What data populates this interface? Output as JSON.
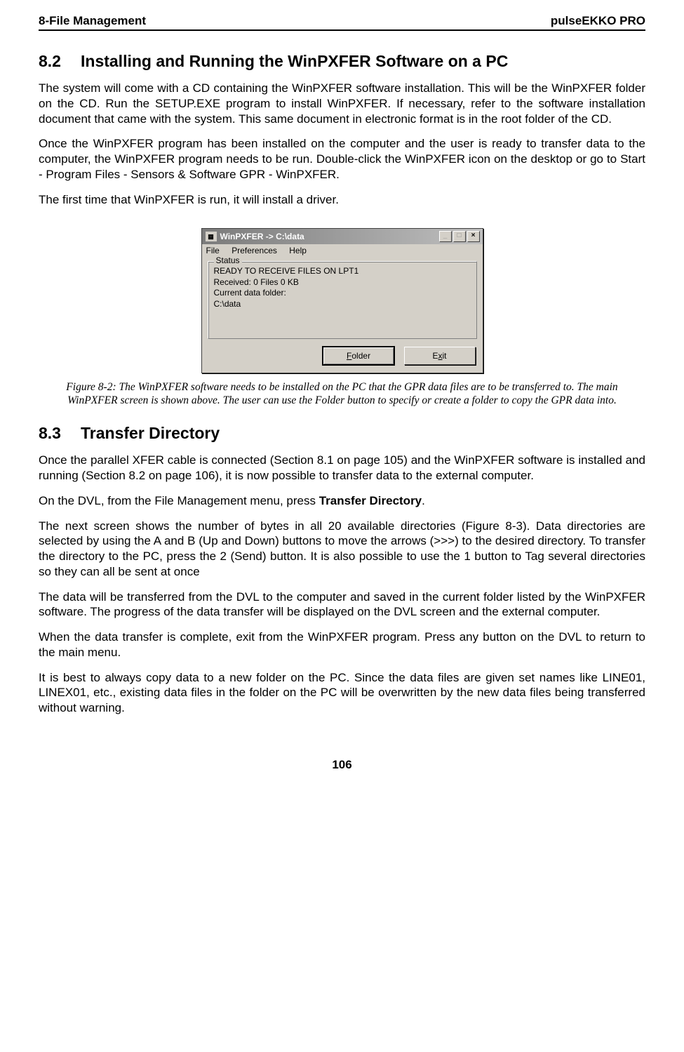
{
  "header": {
    "left": "8-File Management",
    "right": "pulseEKKO PRO"
  },
  "section82": {
    "num": "8.2",
    "title": "Installing and Running the WinPXFER Software on a PC",
    "p1": "The system will come with a CD containing the WinPXFER software installation. This will be the WinPXFER folder on the CD. Run the SETUP.EXE program to install WinPXFER. If necessary, refer to the software installation document that came with the system. This same document in electronic format is in the root folder of the CD.",
    "p2": "Once the WinPXFER program has been installed on the computer and the user is ready to transfer data to the computer, the WinPXFER program needs to be run. Double-click the WinPXFER icon on the desktop or go to Start - Program Files - Sensors & Software GPR - WinPXFER.",
    "p3": "The first time that WinPXFER is run, it will install a driver."
  },
  "window": {
    "title": "WinPXFER -> C:\\data",
    "menu": {
      "file": "File",
      "preferences": "Preferences",
      "help": "Help"
    },
    "group_label": "Status",
    "lines": {
      "l1": "READY TO RECEIVE FILES ON LPT1",
      "l2": "Received:   0 Files   0 KB",
      "l3": "Current data folder:",
      "l4": "C:\\data"
    },
    "buttons": {
      "folder": "Folder",
      "exit": "Exit"
    },
    "close_glyph": "×",
    "max_glyph": "□",
    "min_glyph": "_",
    "controls": {
      "min": "_",
      "max": "□",
      "close": "×"
    }
  },
  "caption": "Figure 8-2:  The WinPXFER software needs to be installed on the PC that the GPR data files are to be transferred to. The main WinPXFER screen is shown above. The user can use the Folder button to specify or create a folder to copy the GPR data into.",
  "section83": {
    "num": "8.3",
    "title": "Transfer Directory",
    "p1": "Once the parallel XFER cable is connected (Section 8.1 on page 105) and the WinPXFER software is installed and running (Section 8.2 on page 106), it is now possible to transfer data to the external computer.",
    "p2a": "On the DVL, from the File Management menu, press ",
    "p2bold": "Transfer Directory",
    "p2b": ".",
    "p3": "The next screen shows the number of bytes in all 20 available directories (Figure 8-3). Data directories are selected by using the A and B (Up and Down) buttons to move the arrows (>>>) to the desired directory. To transfer the directory to the PC, press the 2 (Send) button. It is also possible to use the 1 button to Tag several directories so they can all be sent at once",
    "p4": "The data will be transferred from the DVL to the computer and saved in the current folder listed by the WinPXFER software.  The progress of the data transfer will be displayed on the DVL screen and the external computer.",
    "p5": "When the data transfer is complete, exit from the WinPXFER program. Press any button on the DVL to return to the main menu.",
    "p6": "It is best to always copy data to a new folder on the PC. Since the data files are given set names like LINE01, LINEX01, etc., existing data files in the folder on the PC will be overwritten by the new data files being transferred without warning."
  },
  "page_number": "106"
}
